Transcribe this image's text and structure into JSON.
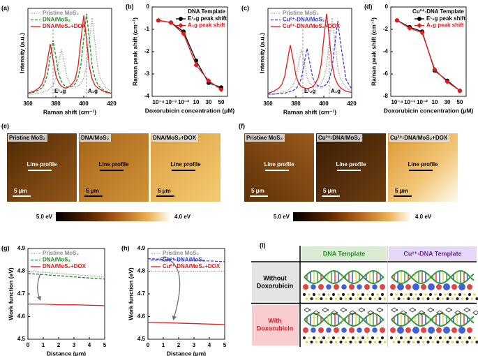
{
  "chart_data": [
    {
      "type": "line",
      "label": "(a)",
      "xlabel": "Raman shift (cm⁻¹)",
      "ylabel": "Intensity (a.u.)",
      "x": [
        360,
        364,
        368,
        370,
        372,
        374,
        376,
        378,
        380,
        382,
        384,
        386,
        388,
        390,
        392,
        394,
        396,
        398,
        400,
        402,
        404,
        406,
        408,
        410,
        412,
        416,
        420
      ],
      "xlim": [
        360,
        420
      ],
      "xticks": [
        360,
        380,
        400,
        420
      ],
      "ylim": [
        0,
        1
      ],
      "vlines": [
        378,
        402
      ],
      "annotations": [
        "E¹₂g",
        "A₁g"
      ],
      "legend": "upper left",
      "series": [
        {
          "name": "Pristine MoS₂",
          "color": "#8c8c8c",
          "linestyle": "dotted",
          "values": [
            0.04,
            0.04,
            0.05,
            0.06,
            0.07,
            0.08,
            0.1,
            0.14,
            0.22,
            0.39,
            0.54,
            0.4,
            0.23,
            0.16,
            0.13,
            0.12,
            0.13,
            0.16,
            0.22,
            0.35,
            0.63,
            0.89,
            0.63,
            0.34,
            0.21,
            0.11,
            0.07
          ]
        },
        {
          "name": "DNA/MoS₂",
          "color": "#1e8c1e",
          "linestyle": "dashed",
          "values": [
            0.05,
            0.06,
            0.09,
            0.11,
            0.16,
            0.26,
            0.46,
            0.64,
            0.46,
            0.27,
            0.18,
            0.14,
            0.12,
            0.12,
            0.13,
            0.16,
            0.23,
            0.37,
            0.66,
            0.94,
            0.66,
            0.36,
            0.22,
            0.15,
            0.11,
            0.07,
            0.05
          ]
        },
        {
          "name": "DNA/MoS₂+DOX",
          "color": "#e31a1c",
          "linestyle": "solid",
          "values": [
            0.05,
            0.07,
            0.11,
            0.15,
            0.24,
            0.42,
            0.6,
            0.43,
            0.25,
            0.17,
            0.13,
            0.11,
            0.11,
            0.13,
            0.16,
            0.21,
            0.36,
            0.65,
            0.92,
            0.65,
            0.35,
            0.21,
            0.14,
            0.11,
            0.09,
            0.06,
            0.05
          ]
        }
      ]
    },
    {
      "type": "line",
      "label": "(b)",
      "xlabel": "Doxorubicin concentration (μM)",
      "ylabel": "Raman peak shift (cm⁻¹)",
      "categories": [
        "10⁻⁴",
        "10⁻³",
        "10⁻²",
        "10",
        "30",
        "50"
      ],
      "ylim": [
        -4,
        0
      ],
      "yticks": [
        -4,
        -3,
        -2,
        -1,
        0
      ],
      "legend": "upper right",
      "legend_title": "DNA Template",
      "series": [
        {
          "name": "E¹₂g peak shift",
          "color": "#000000",
          "linestyle": "solid",
          "marker": "circle",
          "values": [
            -0.6,
            -0.7,
            -1.1,
            -2.4,
            -3.4,
            -3.6
          ]
        },
        {
          "name": "A₁g peak shift",
          "color": "#e31a1c",
          "linestyle": "solid",
          "marker": "diamond",
          "values": [
            -0.6,
            -0.7,
            -1.2,
            -2.6,
            -3.3,
            -3.7
          ]
        }
      ]
    },
    {
      "type": "line",
      "label": "(c)",
      "xlabel": "Raman shift (cm⁻¹)",
      "ylabel": "Intensity (a.u.)",
      "x": [
        360,
        364,
        368,
        370,
        372,
        374,
        376,
        378,
        380,
        382,
        384,
        386,
        388,
        390,
        392,
        394,
        396,
        398,
        400,
        402,
        404,
        406,
        408,
        410,
        412,
        416,
        420
      ],
      "xlim": [
        360,
        420
      ],
      "xticks": [
        360,
        380,
        400,
        420
      ],
      "ylim": [
        0,
        1
      ],
      "vlines": [
        385,
        404
      ],
      "annotations": [
        "E¹₂g",
        "A₁g"
      ],
      "legend": "upper left",
      "series": [
        {
          "name": "Pristine MoS₂",
          "color": "#8c8c8c",
          "linestyle": "dotted",
          "values": [
            0.04,
            0.04,
            0.05,
            0.06,
            0.07,
            0.08,
            0.1,
            0.14,
            0.22,
            0.39,
            0.54,
            0.4,
            0.23,
            0.16,
            0.13,
            0.12,
            0.13,
            0.16,
            0.22,
            0.35,
            0.63,
            0.89,
            0.63,
            0.34,
            0.21,
            0.11,
            0.07
          ]
        },
        {
          "name": "Cu²⁺-DNA/MoS₂",
          "color": "#3a3ae0",
          "linestyle": "dashed",
          "values": [
            0.04,
            0.04,
            0.05,
            0.05,
            0.05,
            0.06,
            0.07,
            0.08,
            0.1,
            0.14,
            0.22,
            0.39,
            0.55,
            0.39,
            0.23,
            0.16,
            0.13,
            0.12,
            0.13,
            0.15,
            0.21,
            0.34,
            0.61,
            0.86,
            0.61,
            0.2,
            0.1
          ]
        },
        {
          "name": "Cu²⁺-DNA/MoS₂+DOX",
          "color": "#e31a1c",
          "linestyle": "solid",
          "values": [
            0.05,
            0.07,
            0.11,
            0.15,
            0.24,
            0.42,
            0.59,
            0.43,
            0.25,
            0.16,
            0.12,
            0.11,
            0.1,
            0.11,
            0.12,
            0.16,
            0.22,
            0.36,
            0.66,
            0.94,
            0.66,
            0.36,
            0.22,
            0.15,
            0.11,
            0.07,
            0.06
          ]
        }
      ]
    },
    {
      "type": "line",
      "label": "(d)",
      "xlabel": "Doxorubicin concentration (μM)",
      "ylabel": "Raman peak shift (cm⁻¹)",
      "categories": [
        "10⁻⁴",
        "10⁻³",
        "10⁻²",
        "10",
        "30",
        "50"
      ],
      "ylim": [
        -8,
        0
      ],
      "yticks": [
        -8,
        -6,
        -4,
        -2,
        0
      ],
      "legend": "upper right",
      "legend_title": "Cu²⁺-DNA Template",
      "series": [
        {
          "name": "E¹₂g peak shift",
          "color": "#000000",
          "linestyle": "solid",
          "marker": "circle",
          "values": [
            -1.2,
            -1.8,
            -2.2,
            -5.7,
            -6.6,
            -7.5
          ]
        },
        {
          "name": "A₁g peak shift",
          "color": "#e31a1c",
          "linestyle": "solid",
          "marker": "diamond",
          "values": [
            -1.2,
            -1.9,
            -2.3,
            -5.6,
            -6.7,
            -7.5
          ]
        }
      ]
    },
    {
      "type": "line",
      "label": "(g)",
      "xlabel": "Distance (μm)",
      "ylabel": "Work function (eV)",
      "x": [
        0,
        1,
        2,
        3,
        4,
        5
      ],
      "xlim": [
        0,
        5
      ],
      "xticks": [
        0,
        1,
        2,
        3,
        4,
        5
      ],
      "ylim": [
        4.5,
        4.9
      ],
      "yticks": [
        4.5,
        4.6,
        4.7,
        4.8,
        4.9
      ],
      "legend": "upper left",
      "series": [
        {
          "name": "Pristine MoS₂",
          "color": "#8c8c8c",
          "linestyle": "dotted",
          "values": [
            4.8,
            4.795,
            4.79,
            4.785,
            4.78,
            4.775
          ]
        },
        {
          "name": "DNA/MoS₂",
          "color": "#1e8c1e",
          "linestyle": "dashed",
          "values": [
            4.79,
            4.785,
            4.78,
            4.775,
            4.77,
            4.765
          ]
        },
        {
          "name": "DNA/MoS₂+DOX",
          "color": "#e31a1c",
          "linestyle": "solid",
          "values": [
            4.655,
            4.655,
            4.652,
            4.652,
            4.65,
            4.648
          ]
        }
      ]
    },
    {
      "type": "line",
      "label": "(h)",
      "xlabel": "Distance (μm)",
      "ylabel": "Work function (eV)",
      "x": [
        0,
        1,
        2,
        3,
        4,
        5
      ],
      "xlim": [
        0,
        5
      ],
      "xticks": [
        0,
        1,
        2,
        3,
        4,
        5
      ],
      "ylim": [
        4.5,
        4.9
      ],
      "yticks": [
        4.5,
        4.6,
        4.7,
        4.8,
        4.9
      ],
      "legend": "upper left",
      "series": [
        {
          "name": "Pristine MoS₂",
          "color": "#8c8c8c",
          "linestyle": "dotted",
          "values": [
            4.8,
            4.8,
            4.8,
            4.8,
            4.8,
            4.8
          ]
        },
        {
          "name": "Cu²⁺-DNA/MoS₂",
          "color": "#3a3ae0",
          "linestyle": "dashed",
          "values": [
            4.855,
            4.852,
            4.85,
            4.847,
            4.845,
            4.842
          ]
        },
        {
          "name": "Cu²⁺-DNA/MoS₂+DOX",
          "color": "#e31a1c",
          "linestyle": "solid",
          "values": [
            4.575,
            4.573,
            4.571,
            4.569,
            4.567,
            4.565
          ]
        }
      ]
    }
  ],
  "afm": [
    {
      "label": "(e)",
      "panels": [
        {
          "title": "Pristine MoS₂",
          "profile": "Line profile",
          "scale": "5 μm"
        },
        {
          "title": "DNA/MoS₂",
          "profile": "Line profile",
          "scale": "5 μm"
        },
        {
          "title": "DNA/MoS₂+DOX",
          "profile": "Line profile",
          "scale": "5 μm"
        }
      ],
      "colorbar": [
        "5.0 eV",
        "4.0 eV"
      ]
    },
    {
      "label": "(f)",
      "panels": [
        {
          "title": "Pristine MoS₂",
          "profile": "Line profile",
          "scale": "5 μm"
        },
        {
          "title": "Cu²⁺-DNA/MoS₂",
          "profile": "Line profile",
          "scale": "5 μm"
        },
        {
          "title": "Cu²⁺-DNA/MoS₂+DOX",
          "profile": "Line profile",
          "scale": "5 μm"
        }
      ],
      "colorbar": [
        "5.0 eV",
        "4.0 eV"
      ]
    }
  ],
  "schematic": {
    "label": "(i)",
    "columns": [
      "DNA Template",
      "Cu²⁺-DNA Template"
    ],
    "rows": [
      [
        "Without",
        "Doxorubicin"
      ],
      [
        "With",
        "Doxorubicin"
      ]
    ]
  }
}
